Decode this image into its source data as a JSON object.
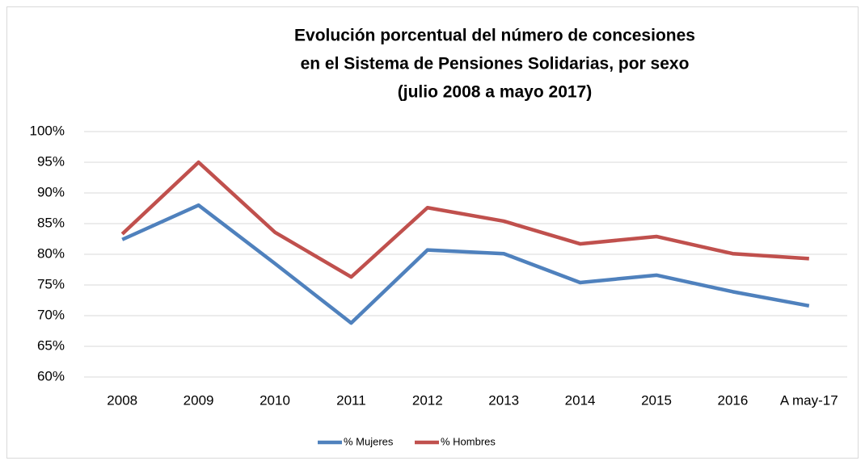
{
  "chart_data": {
    "type": "line",
    "title": [
      "Evolución porcentual del número de concesiones",
      "en el Sistema de Pensiones Solidarias, por sexo",
      "(julio 2008 a mayo 2017)"
    ],
    "categories": [
      "2008",
      "2009",
      "2010",
      "2011",
      "2012",
      "2013",
      "2014",
      "2015",
      "2016",
      "A may-17"
    ],
    "series": [
      {
        "name": "% Mujeres",
        "color": "#4f81bd",
        "values": [
          82.4,
          88.0,
          78.5,
          68.8,
          80.7,
          80.1,
          75.4,
          76.6,
          73.9,
          71.6
        ]
      },
      {
        "name": "% Hombres",
        "color": "#c0504d",
        "values": [
          83.3,
          95.0,
          83.6,
          76.3,
          87.6,
          85.4,
          81.7,
          82.9,
          80.1,
          79.3
        ]
      }
    ],
    "ylim": [
      60,
      100
    ],
    "yticks": [
      {
        "value": 60,
        "label": "60%"
      },
      {
        "value": 65,
        "label": "65%"
      },
      {
        "value": 70,
        "label": "70%"
      },
      {
        "value": 75,
        "label": "75%"
      },
      {
        "value": 80,
        "label": "80%"
      },
      {
        "value": 85,
        "label": "85%"
      },
      {
        "value": 90,
        "label": "90%"
      },
      {
        "value": 95,
        "label": "95%"
      },
      {
        "value": 100,
        "label": "100%"
      }
    ],
    "grid": true,
    "legend": "bottom"
  }
}
